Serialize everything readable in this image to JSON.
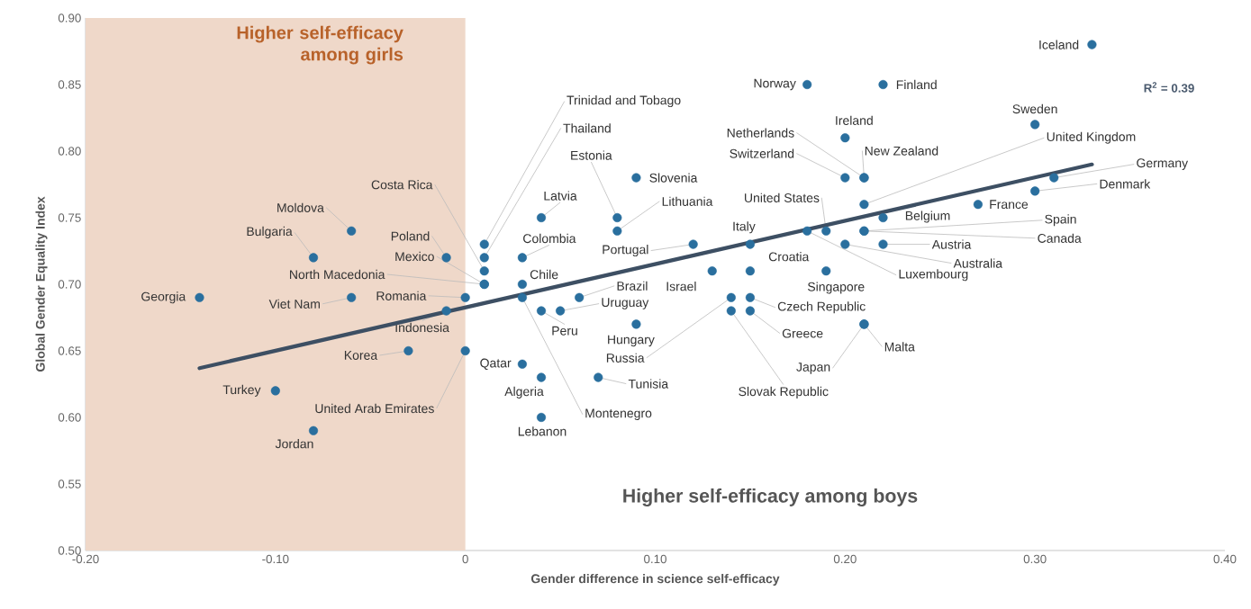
{
  "chart_data": {
    "type": "scatter",
    "xlabel": "Gender difference in science self-efficacy",
    "ylabel": "Global Gender Equality Index",
    "xlim": [
      -0.2,
      0.4
    ],
    "ylim": [
      0.5,
      0.9
    ],
    "xticks": [
      {
        "value": -0.2,
        "label": "-0.20"
      },
      {
        "value": -0.1,
        "label": "-0.10"
      },
      0,
      {
        "value": 0.1,
        "label": "0.10"
      },
      {
        "value": 0.2,
        "label": "0.20"
      },
      {
        "value": 0.3,
        "label": "0.30"
      },
      {
        "value": 0.4,
        "label": "0.40"
      }
    ],
    "yticks": [
      {
        "value": 0.5,
        "label": "0.50"
      },
      {
        "value": 0.55,
        "label": "0.55"
      },
      {
        "value": 0.6,
        "label": "0.60"
      },
      {
        "value": 0.65,
        "label": "0.65"
      },
      {
        "value": 0.7,
        "label": "0.70"
      },
      {
        "value": 0.75,
        "label": "0.75"
      },
      {
        "value": 0.8,
        "label": "0.80"
      },
      {
        "value": 0.85,
        "label": "0.85"
      },
      {
        "value": 0.9,
        "label": "0.90"
      }
    ],
    "grid": false,
    "series": [
      {
        "marker": "circle",
        "color": "#2a6f9e",
        "x": [
          0.33,
          0.18,
          0.22,
          0.2,
          0.3,
          0.21,
          0.2,
          0.21,
          0.21,
          0.31,
          0.3,
          0.27,
          0.22,
          0.21,
          0.21,
          0.22,
          0.2,
          0.19,
          0.18,
          0.15,
          0.15,
          0.19,
          0.13,
          0.12,
          0.09,
          0.08,
          0.08,
          0.04,
          0.03,
          0.03,
          0.03,
          0.06,
          0.05,
          0.04,
          0.09,
          0.14,
          0.07,
          0.03,
          0.04,
          0.04,
          0.15,
          0.15,
          0.14,
          0.21,
          0.21,
          0.01,
          0.01,
          0.01,
          0.01,
          0.01,
          -0.01,
          0.0,
          -0.01,
          0.0,
          -0.03,
          -0.06,
          -0.08,
          -0.06,
          -0.14,
          -0.1,
          -0.08
        ],
        "values": [
          0.88,
          0.85,
          0.85,
          0.81,
          0.82,
          0.78,
          0.78,
          0.78,
          0.76,
          0.78,
          0.77,
          0.76,
          0.75,
          0.74,
          0.74,
          0.73,
          0.73,
          0.74,
          0.74,
          0.73,
          0.71,
          0.71,
          0.71,
          0.73,
          0.78,
          0.75,
          0.74,
          0.75,
          0.72,
          0.7,
          0.69,
          0.69,
          0.68,
          0.68,
          0.67,
          0.69,
          0.63,
          0.64,
          0.63,
          0.6,
          0.69,
          0.68,
          0.68,
          0.67,
          0.67,
          0.73,
          0.72,
          0.71,
          0.7,
          0.7,
          0.72,
          0.69,
          0.68,
          0.65,
          0.65,
          0.74,
          0.72,
          0.69,
          0.69,
          0.62,
          0.59
        ]
      },
      {
        "type": "line",
        "color": "#3d4f63",
        "line_style": "solid",
        "x": [
          -0.14,
          0.33
        ],
        "values": [
          0.637,
          0.79
        ]
      }
    ],
    "bands": [
      {
        "axis": "x",
        "from": -0.2,
        "to": 0,
        "label": "Higher self-efficacy among girls",
        "color": "#efd8c9"
      }
    ],
    "annotations": [
      "Higher self-efficacy among boys",
      "R$^{2}$ = 0.39",
      {
        "text": "Iceland",
        "x": 0.33,
        "y": 0.88
      },
      {
        "text": "Norway",
        "x": 0.18,
        "y": 0.85
      },
      {
        "text": "Finland",
        "x": 0.22,
        "y": 0.85
      },
      {
        "text": "Ireland",
        "x": 0.2,
        "y": 0.81
      },
      {
        "text": "Sweden",
        "x": 0.3,
        "y": 0.82
      },
      {
        "text": "Netherlands",
        "x": 0.21,
        "y": 0.78
      },
      {
        "text": "Switzerland",
        "x": 0.2,
        "y": 0.78
      },
      {
        "text": "New Zealand",
        "x": 0.21,
        "y": 0.78
      },
      {
        "text": "United Kingdom",
        "x": 0.21,
        "y": 0.76
      },
      {
        "text": "Germany",
        "x": 0.31,
        "y": 0.78
      },
      {
        "text": "Denmark",
        "x": 0.3,
        "y": 0.77
      },
      {
        "text": "France",
        "x": 0.27,
        "y": 0.76
      },
      {
        "text": "Belgium",
        "x": 0.22,
        "y": 0.75
      },
      {
        "text": "Spain",
        "x": 0.21,
        "y": 0.74
      },
      {
        "text": "Canada",
        "x": 0.21,
        "y": 0.74
      },
      {
        "text": "Austria",
        "x": 0.22,
        "y": 0.73
      },
      {
        "text": "Australia",
        "x": 0.2,
        "y": 0.73
      },
      {
        "text": "United States",
        "x": 0.19,
        "y": 0.74
      },
      {
        "text": "Luxembourg",
        "x": 0.18,
        "y": 0.74
      },
      {
        "text": "Italy",
        "x": 0.15,
        "y": 0.73
      },
      {
        "text": "Croatia",
        "x": 0.15,
        "y": 0.71
      },
      {
        "text": "Singapore",
        "x": 0.19,
        "y": 0.71
      },
      {
        "text": "Israel",
        "x": 0.13,
        "y": 0.71
      },
      {
        "text": "Portugal",
        "x": 0.12,
        "y": 0.73
      },
      {
        "text": "Slovenia",
        "x": 0.09,
        "y": 0.78
      },
      {
        "text": "Estonia",
        "x": 0.08,
        "y": 0.75
      },
      {
        "text": "Lithuania",
        "x": 0.08,
        "y": 0.74
      },
      {
        "text": "Latvia",
        "x": 0.04,
        "y": 0.75
      },
      {
        "text": "Colombia",
        "x": 0.03,
        "y": 0.72
      },
      {
        "text": "Chile",
        "x": 0.03,
        "y": 0.7
      },
      {
        "text": "Montenegro",
        "x": 0.03,
        "y": 0.69
      },
      {
        "text": "Brazil",
        "x": 0.06,
        "y": 0.69
      },
      {
        "text": "Uruguay",
        "x": 0.05,
        "y": 0.68
      },
      {
        "text": "Peru",
        "x": 0.04,
        "y": 0.68
      },
      {
        "text": "Hungary",
        "x": 0.09,
        "y": 0.67
      },
      {
        "text": "Russia",
        "x": 0.14,
        "y": 0.69
      },
      {
        "text": "Tunisia",
        "x": 0.07,
        "y": 0.63
      },
      {
        "text": "Qatar",
        "x": 0.03,
        "y": 0.64
      },
      {
        "text": "Algeria",
        "x": 0.04,
        "y": 0.63
      },
      {
        "text": "Lebanon",
        "x": 0.04,
        "y": 0.6
      },
      {
        "text": "Czech Republic",
        "x": 0.15,
        "y": 0.69
      },
      {
        "text": "Greece",
        "x": 0.15,
        "y": 0.68
      },
      {
        "text": "Slovak Republic",
        "x": 0.14,
        "y": 0.68
      },
      {
        "text": "Japan",
        "x": 0.21,
        "y": 0.67
      },
      {
        "text": "Malta",
        "x": 0.21,
        "y": 0.67
      },
      {
        "text": "Trinidad and Tobago",
        "x": 0.01,
        "y": 0.73
      },
      {
        "text": "Thailand",
        "x": 0.01,
        "y": 0.72
      },
      {
        "text": "Costa Rica",
        "x": 0.01,
        "y": 0.71
      },
      {
        "text": "Mexico",
        "x": 0.01,
        "y": 0.7
      },
      {
        "text": "North Macedonia",
        "x": 0.01,
        "y": 0.7
      },
      {
        "text": "Poland",
        "x": -0.01,
        "y": 0.72
      },
      {
        "text": "Romania",
        "x": 0.0,
        "y": 0.69
      },
      {
        "text": "Indonesia",
        "x": -0.01,
        "y": 0.68
      },
      {
        "text": "United Arab Emirates",
        "x": 0.0,
        "y": 0.65
      },
      {
        "text": "Korea",
        "x": -0.03,
        "y": 0.65
      },
      {
        "text": "Moldova",
        "x": -0.06,
        "y": 0.74
      },
      {
        "text": "Bulgaria",
        "x": -0.08,
        "y": 0.72
      },
      {
        "text": "Viet Nam",
        "x": -0.06,
        "y": 0.69
      },
      {
        "text": "Georgia",
        "x": -0.14,
        "y": 0.69
      },
      {
        "text": "Turkey",
        "x": -0.1,
        "y": 0.62
      },
      {
        "text": "Jordan",
        "x": -0.08,
        "y": 0.59
      }
    ]
  }
}
